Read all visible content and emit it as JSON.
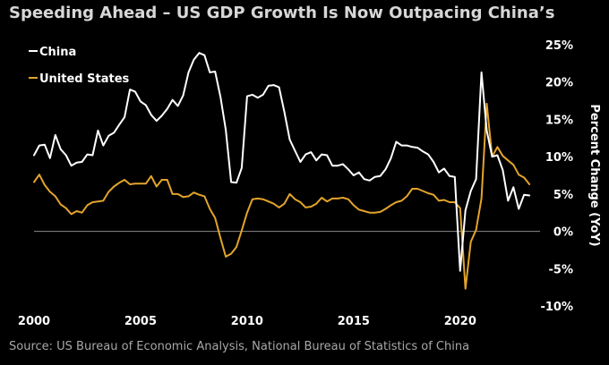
{
  "title": "Speeding Ahead – US GDP Growth Is Now Outpacing China’s",
  "source": "Source: US Bureau of Economic Analysis, National Bureau of Statistics of China",
  "colors": {
    "background": "#000000",
    "china": "#ffffff",
    "united_states": "#e3a42b",
    "zero_line": "#8a8a8a",
    "text": "#ffffff"
  },
  "chart_data": {
    "type": "line",
    "ylabel": "Percent Change (YoY)",
    "y_axis_position": "right",
    "ylim": [
      -10,
      25
    ],
    "yticks": [
      -10,
      -5,
      0,
      5,
      10,
      15,
      20,
      25
    ],
    "ytick_labels": [
      "-10%",
      "-5%",
      "0%",
      "5%",
      "10%",
      "15%",
      "20%",
      "25%"
    ],
    "xlim": [
      2000,
      2023.75
    ],
    "xticks": [
      2000,
      2005,
      2010,
      2015,
      2020
    ],
    "xtick_labels": [
      "2000",
      "2005",
      "2010",
      "2015",
      "2020"
    ],
    "grid": false,
    "zero_line": true,
    "legend_position": "top-left",
    "series": [
      {
        "name": "China",
        "color": "#ffffff",
        "points": [
          [
            2000.0,
            10.2
          ],
          [
            2000.25,
            11.5
          ],
          [
            2000.5,
            11.6
          ],
          [
            2000.75,
            9.8
          ],
          [
            2001.0,
            12.9
          ],
          [
            2001.25,
            11.0
          ],
          [
            2001.5,
            10.2
          ],
          [
            2001.75,
            8.8
          ],
          [
            2002.0,
            9.2
          ],
          [
            2002.25,
            9.3
          ],
          [
            2002.5,
            10.3
          ],
          [
            2002.75,
            10.2
          ],
          [
            2003.0,
            13.5
          ],
          [
            2003.25,
            11.5
          ],
          [
            2003.5,
            12.8
          ],
          [
            2003.75,
            13.2
          ],
          [
            2004.0,
            14.3
          ],
          [
            2004.25,
            15.3
          ],
          [
            2004.5,
            19.0
          ],
          [
            2004.75,
            18.7
          ],
          [
            2005.0,
            17.4
          ],
          [
            2005.25,
            16.9
          ],
          [
            2005.5,
            15.6
          ],
          [
            2005.75,
            14.8
          ],
          [
            2006.0,
            15.5
          ],
          [
            2006.25,
            16.4
          ],
          [
            2006.5,
            17.6
          ],
          [
            2006.75,
            16.8
          ],
          [
            2007.0,
            18.2
          ],
          [
            2007.25,
            21.3
          ],
          [
            2007.5,
            23.0
          ],
          [
            2007.75,
            23.9
          ],
          [
            2008.0,
            23.6
          ],
          [
            2008.25,
            21.3
          ],
          [
            2008.5,
            21.4
          ],
          [
            2008.75,
            18.0
          ],
          [
            2009.0,
            13.6
          ],
          [
            2009.25,
            6.6
          ],
          [
            2009.5,
            6.5
          ],
          [
            2009.75,
            8.5
          ],
          [
            2010.0,
            18.1
          ],
          [
            2010.25,
            18.3
          ],
          [
            2010.5,
            17.9
          ],
          [
            2010.75,
            18.3
          ],
          [
            2011.0,
            19.5
          ],
          [
            2011.25,
            19.6
          ],
          [
            2011.5,
            19.3
          ],
          [
            2011.75,
            16.0
          ],
          [
            2012.0,
            12.3
          ],
          [
            2012.25,
            10.8
          ],
          [
            2012.5,
            9.3
          ],
          [
            2012.75,
            10.3
          ],
          [
            2013.0,
            10.6
          ],
          [
            2013.25,
            9.5
          ],
          [
            2013.5,
            10.3
          ],
          [
            2013.75,
            10.2
          ],
          [
            2014.0,
            8.8
          ],
          [
            2014.25,
            8.8
          ],
          [
            2014.5,
            9.0
          ],
          [
            2014.75,
            8.3
          ],
          [
            2015.0,
            7.5
          ],
          [
            2015.25,
            7.9
          ],
          [
            2015.5,
            7.0
          ],
          [
            2015.75,
            6.8
          ],
          [
            2016.0,
            7.3
          ],
          [
            2016.25,
            7.4
          ],
          [
            2016.5,
            8.3
          ],
          [
            2016.75,
            9.8
          ],
          [
            2017.0,
            12.0
          ],
          [
            2017.25,
            11.5
          ],
          [
            2017.5,
            11.5
          ],
          [
            2017.75,
            11.3
          ],
          [
            2018.0,
            11.2
          ],
          [
            2018.25,
            10.7
          ],
          [
            2018.5,
            10.3
          ],
          [
            2018.75,
            9.3
          ],
          [
            2019.0,
            7.9
          ],
          [
            2019.25,
            8.4
          ],
          [
            2019.5,
            7.4
          ],
          [
            2019.75,
            7.3
          ],
          [
            2020.0,
            -5.3
          ],
          [
            2020.25,
            2.8
          ],
          [
            2020.5,
            5.4
          ],
          [
            2020.75,
            7.0
          ],
          [
            2021.0,
            21.3
          ],
          [
            2021.25,
            13.5
          ],
          [
            2021.5,
            10.0
          ],
          [
            2021.75,
            10.2
          ],
          [
            2022.0,
            8.2
          ],
          [
            2022.25,
            4.1
          ],
          [
            2022.5,
            5.9
          ],
          [
            2022.75,
            3.0
          ],
          [
            2023.0,
            4.9
          ],
          [
            2023.25,
            4.8
          ]
        ]
      },
      {
        "name": "United States",
        "color": "#e3a42b",
        "points": [
          [
            2000.0,
            6.6
          ],
          [
            2000.25,
            7.6
          ],
          [
            2000.5,
            6.2
          ],
          [
            2000.75,
            5.3
          ],
          [
            2001.0,
            4.7
          ],
          [
            2001.25,
            3.6
          ],
          [
            2001.5,
            3.1
          ],
          [
            2001.75,
            2.3
          ],
          [
            2002.0,
            2.7
          ],
          [
            2002.25,
            2.5
          ],
          [
            2002.5,
            3.5
          ],
          [
            2002.75,
            3.9
          ],
          [
            2003.0,
            4.0
          ],
          [
            2003.25,
            4.1
          ],
          [
            2003.5,
            5.3
          ],
          [
            2003.75,
            6.0
          ],
          [
            2004.0,
            6.5
          ],
          [
            2004.25,
            6.9
          ],
          [
            2004.5,
            6.3
          ],
          [
            2004.75,
            6.4
          ],
          [
            2005.0,
            6.4
          ],
          [
            2005.25,
            6.4
          ],
          [
            2005.5,
            7.4
          ],
          [
            2005.75,
            6.0
          ],
          [
            2006.0,
            6.9
          ],
          [
            2006.25,
            6.9
          ],
          [
            2006.5,
            5.0
          ],
          [
            2006.75,
            5.0
          ],
          [
            2007.0,
            4.6
          ],
          [
            2007.25,
            4.7
          ],
          [
            2007.5,
            5.2
          ],
          [
            2007.75,
            4.9
          ],
          [
            2008.0,
            4.7
          ],
          [
            2008.25,
            3.0
          ],
          [
            2008.5,
            1.8
          ],
          [
            2008.75,
            -0.9
          ],
          [
            2009.0,
            -3.4
          ],
          [
            2009.25,
            -3.0
          ],
          [
            2009.5,
            -2.1
          ],
          [
            2009.75,
            0.1
          ],
          [
            2010.0,
            2.5
          ],
          [
            2010.25,
            4.3
          ],
          [
            2010.5,
            4.4
          ],
          [
            2010.75,
            4.3
          ],
          [
            2011.0,
            4.0
          ],
          [
            2011.25,
            3.7
          ],
          [
            2011.5,
            3.2
          ],
          [
            2011.75,
            3.7
          ],
          [
            2012.0,
            5.0
          ],
          [
            2012.25,
            4.3
          ],
          [
            2012.5,
            3.9
          ],
          [
            2012.75,
            3.2
          ],
          [
            2013.0,
            3.3
          ],
          [
            2013.25,
            3.7
          ],
          [
            2013.5,
            4.5
          ],
          [
            2013.75,
            4.0
          ],
          [
            2014.0,
            4.4
          ],
          [
            2014.25,
            4.4
          ],
          [
            2014.5,
            4.5
          ],
          [
            2014.75,
            4.3
          ],
          [
            2015.0,
            3.5
          ],
          [
            2015.25,
            2.9
          ],
          [
            2015.5,
            2.7
          ],
          [
            2015.75,
            2.5
          ],
          [
            2016.0,
            2.5
          ],
          [
            2016.25,
            2.6
          ],
          [
            2016.5,
            3.0
          ],
          [
            2016.75,
            3.5
          ],
          [
            2017.0,
            3.9
          ],
          [
            2017.25,
            4.1
          ],
          [
            2017.5,
            4.7
          ],
          [
            2017.75,
            5.7
          ],
          [
            2018.0,
            5.7
          ],
          [
            2018.25,
            5.4
          ],
          [
            2018.5,
            5.1
          ],
          [
            2018.75,
            4.9
          ],
          [
            2019.0,
            4.1
          ],
          [
            2019.25,
            4.2
          ],
          [
            2019.5,
            3.9
          ],
          [
            2019.75,
            3.9
          ],
          [
            2020.0,
            3.1
          ],
          [
            2020.25,
            -7.7
          ],
          [
            2020.5,
            -1.4
          ],
          [
            2020.75,
            0.2
          ],
          [
            2021.0,
            4.4
          ],
          [
            2021.25,
            17.1
          ],
          [
            2021.5,
            10.0
          ],
          [
            2021.75,
            11.3
          ],
          [
            2022.0,
            10.1
          ],
          [
            2022.25,
            9.5
          ],
          [
            2022.5,
            8.9
          ],
          [
            2022.75,
            7.6
          ],
          [
            2023.0,
            7.2
          ],
          [
            2023.25,
            6.3
          ]
        ]
      }
    ]
  }
}
